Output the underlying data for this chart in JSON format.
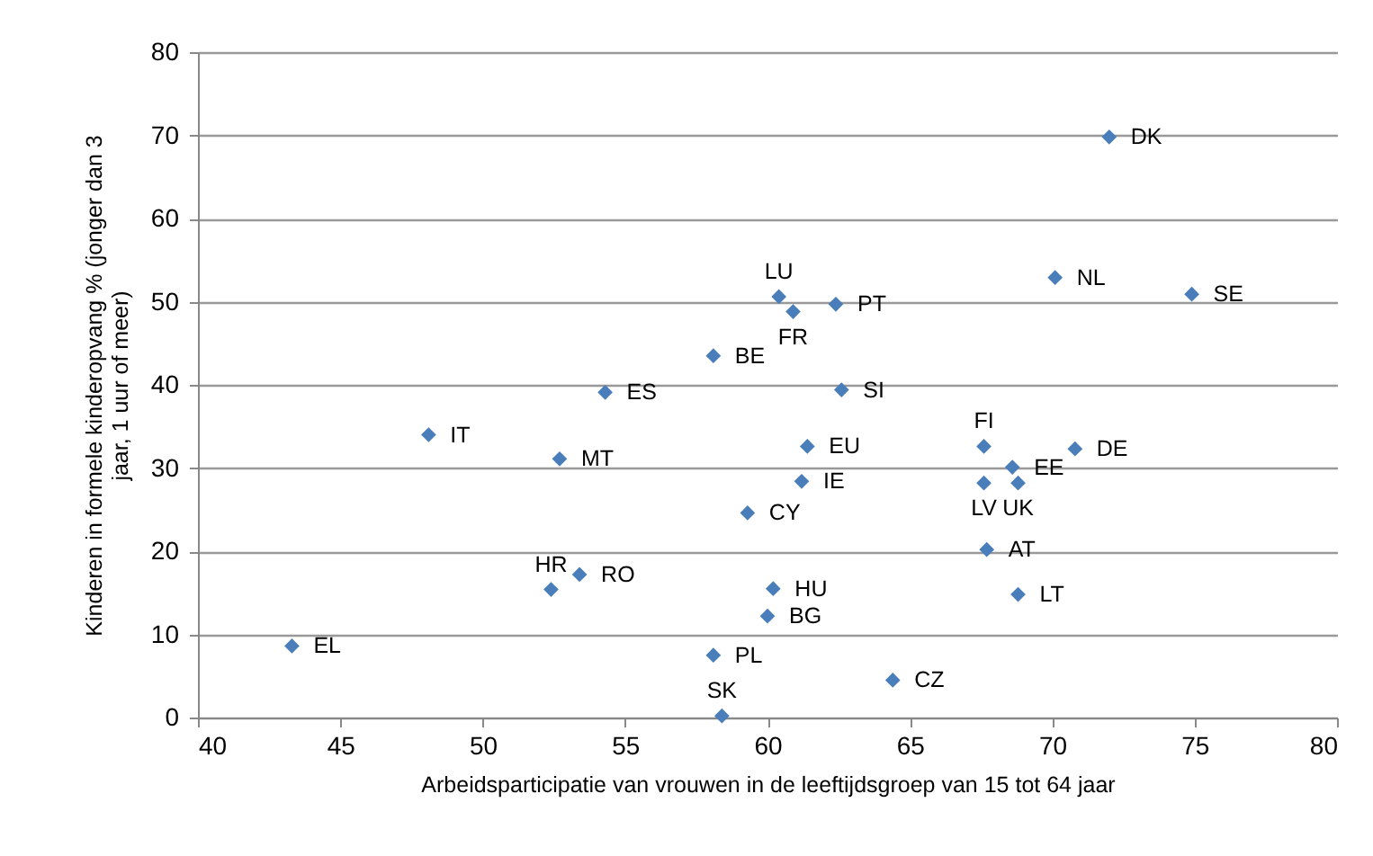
{
  "chart_data": {
    "type": "scatter",
    "xlabel": "Arbeidsparticipatie van vrouwen in de leeftijdsgroep van 15 tot 64 jaar",
    "ylabel": "Kinderen in formele kinderopvang % (jonger dan 3 jaar, 1 uur of meer)",
    "x": [
      43.3,
      48.1,
      52.7,
      52.4,
      53.4,
      54.3,
      58.1,
      58.1,
      58.4,
      59.3,
      60.4,
      60.9,
      62.4,
      62.6,
      61.4,
      61.2,
      60.2,
      60.0,
      64.4,
      67.6,
      67.6,
      68.6,
      68.8,
      67.7,
      68.8,
      70.8,
      70.1,
      72.0,
      74.9
    ],
    "values": [
      8.6,
      34.0,
      31.1,
      15.4,
      17.2,
      39.1,
      43.5,
      7.5,
      0.2,
      24.6,
      50.6,
      48.8,
      49.7,
      39.4,
      32.6,
      28.4,
      15.5,
      12.2,
      4.5,
      32.6,
      28.2,
      30.1,
      28.2,
      20.2,
      14.8,
      32.3,
      52.9,
      69.8,
      50.9
    ],
    "color": "#4a7ebb",
    "marker": "diamond",
    "grid": "y",
    "xlim": [
      40,
      80
    ],
    "xticks": [
      40,
      45,
      50,
      55,
      60,
      65,
      70,
      75,
      80
    ],
    "ylim": [
      0,
      80
    ],
    "yticks": [
      0,
      10,
      20,
      30,
      40,
      50,
      60,
      70,
      80
    ],
    "annotations": [
      {
        "text": "EL",
        "x": 43.3,
        "y": 8.6
      },
      {
        "text": "IT",
        "x": 48.1,
        "y": 34.0
      },
      {
        "text": "MT",
        "x": 52.7,
        "y": 31.1
      },
      {
        "text": "HR",
        "x": 52.4,
        "y": 15.4
      },
      {
        "text": "RO",
        "x": 53.4,
        "y": 17.2
      },
      {
        "text": "ES",
        "x": 54.3,
        "y": 39.1
      },
      {
        "text": "BE",
        "x": 58.1,
        "y": 43.5
      },
      {
        "text": "PL",
        "x": 58.1,
        "y": 7.5
      },
      {
        "text": "SK",
        "x": 58.4,
        "y": 0.2
      },
      {
        "text": "CY",
        "x": 59.3,
        "y": 24.6
      },
      {
        "text": "LU",
        "x": 60.4,
        "y": 50.6
      },
      {
        "text": "FR",
        "x": 60.9,
        "y": 48.8
      },
      {
        "text": "PT",
        "x": 62.4,
        "y": 49.7
      },
      {
        "text": "SI",
        "x": 62.6,
        "y": 39.4
      },
      {
        "text": "EU",
        "x": 61.4,
        "y": 32.6
      },
      {
        "text": "IE",
        "x": 61.2,
        "y": 28.4
      },
      {
        "text": "HU",
        "x": 60.2,
        "y": 15.5
      },
      {
        "text": "BG",
        "x": 60.0,
        "y": 12.2
      },
      {
        "text": "CZ",
        "x": 64.4,
        "y": 4.5
      },
      {
        "text": "FI",
        "x": 67.6,
        "y": 32.6
      },
      {
        "text": "LV",
        "x": 67.6,
        "y": 28.2
      },
      {
        "text": "EE",
        "x": 68.6,
        "y": 30.1
      },
      {
        "text": "UK",
        "x": 68.8,
        "y": 28.2
      },
      {
        "text": "AT",
        "x": 67.7,
        "y": 20.2
      },
      {
        "text": "LT",
        "x": 68.8,
        "y": 14.8
      },
      {
        "text": "DE",
        "x": 70.8,
        "y": 32.3
      },
      {
        "text": "NL",
        "x": 70.1,
        "y": 52.9
      },
      {
        "text": "DK",
        "x": 72.0,
        "y": 69.8
      },
      {
        "text": "SE",
        "x": 74.9,
        "y": 50.9
      }
    ]
  }
}
